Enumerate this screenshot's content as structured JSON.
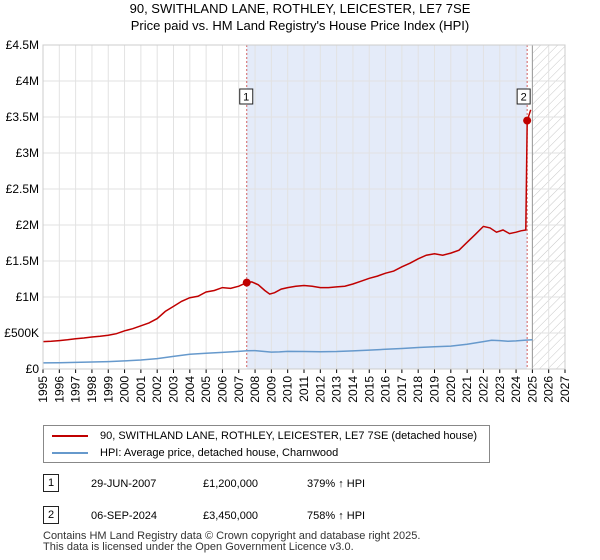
{
  "chart_data": {
    "type": "line",
    "title": "90, SWITHLAND LANE, ROTHLEY, LEICESTER, LE7 7SE",
    "subtitle": "Price paid vs. HM Land Registry's House Price Index (HPI)",
    "xlabel": "",
    "ylabel": "",
    "xlim": [
      1995,
      2027
    ],
    "ylim": [
      0,
      4500000
    ],
    "y_ticks": [
      {
        "value": 0,
        "label": "£0"
      },
      {
        "value": 500000,
        "label": "£500K"
      },
      {
        "value": 1000000,
        "label": "£1M"
      },
      {
        "value": 1500000,
        "label": "£1.5M"
      },
      {
        "value": 2000000,
        "label": "£2M"
      },
      {
        "value": 2500000,
        "label": "£2.5M"
      },
      {
        "value": 3000000,
        "label": "£3M"
      },
      {
        "value": 3500000,
        "label": "£3.5M"
      },
      {
        "value": 4000000,
        "label": "£4M"
      },
      {
        "value": 4500000,
        "label": "£4.5M"
      }
    ],
    "x_ticks": [
      "1995",
      "1996",
      "1997",
      "1998",
      "1999",
      "2000",
      "2001",
      "2002",
      "2003",
      "2004",
      "2005",
      "2006",
      "2007",
      "2008",
      "2009",
      "2010",
      "2011",
      "2012",
      "2013",
      "2014",
      "2015",
      "2016",
      "2017",
      "2018",
      "2019",
      "2020",
      "2021",
      "2022",
      "2023",
      "2024",
      "2025",
      "2026",
      "2027"
    ],
    "grid": true,
    "shaded_span": [
      2007.49,
      2024.68
    ],
    "future_hatch_from": 2025.0,
    "series": [
      {
        "name": "90, SWITHLAND LANE, ROTHLEY, LEICESTER, LE7 7SE (detached house)",
        "color": "#c00000",
        "x": [
          1995.0,
          1995.5,
          1996.0,
          1996.5,
          1997.0,
          1997.5,
          1998.0,
          1998.5,
          1999.0,
          1999.5,
          2000.0,
          2000.5,
          2001.0,
          2001.5,
          2002.0,
          2002.5,
          2003.0,
          2003.5,
          2004.0,
          2004.5,
          2005.0,
          2005.5,
          2006.0,
          2006.5,
          2007.0,
          2007.49,
          2007.8,
          2008.2,
          2008.6,
          2008.9,
          2009.2,
          2009.6,
          2010.0,
          2010.5,
          2011.0,
          2011.5,
          2012.0,
          2012.5,
          2013.0,
          2013.5,
          2014.0,
          2014.5,
          2015.0,
          2015.5,
          2016.0,
          2016.5,
          2017.0,
          2017.5,
          2018.0,
          2018.5,
          2019.0,
          2019.5,
          2020.0,
          2020.5,
          2021.0,
          2021.5,
          2022.0,
          2022.4,
          2022.8,
          2023.2,
          2023.6,
          2024.0,
          2024.3,
          2024.6,
          2024.68,
          2024.9
        ],
        "values": [
          380000,
          385000,
          395000,
          405000,
          420000,
          430000,
          445000,
          455000,
          470000,
          490000,
          530000,
          560000,
          600000,
          640000,
          700000,
          800000,
          870000,
          940000,
          990000,
          1010000,
          1070000,
          1090000,
          1130000,
          1120000,
          1150000,
          1200000,
          1210000,
          1170000,
          1090000,
          1040000,
          1060000,
          1110000,
          1130000,
          1150000,
          1160000,
          1150000,
          1130000,
          1130000,
          1140000,
          1150000,
          1180000,
          1220000,
          1260000,
          1290000,
          1330000,
          1360000,
          1420000,
          1470000,
          1530000,
          1580000,
          1600000,
          1580000,
          1610000,
          1650000,
          1760000,
          1870000,
          1980000,
          1960000,
          1900000,
          1930000,
          1880000,
          1900000,
          1920000,
          1930000,
          3450000,
          3600000
        ]
      },
      {
        "name": "HPI: Average price, detached house, Charnwood",
        "color": "#6699cc",
        "x": [
          1995.0,
          1996.0,
          1997.0,
          1998.0,
          1999.0,
          2000.0,
          2001.0,
          2002.0,
          2003.0,
          2004.0,
          2005.0,
          2006.0,
          2007.0,
          2007.5,
          2008.0,
          2008.5,
          2009.0,
          2009.5,
          2010.0,
          2011.0,
          2012.0,
          2013.0,
          2014.0,
          2015.0,
          2016.0,
          2017.0,
          2018.0,
          2019.0,
          2020.0,
          2021.0,
          2022.0,
          2022.5,
          2023.0,
          2023.5,
          2024.0,
          2024.5,
          2025.0
        ],
        "values": [
          85000,
          87000,
          92000,
          97000,
          103000,
          112000,
          125000,
          145000,
          175000,
          205000,
          220000,
          230000,
          245000,
          253000,
          255000,
          245000,
          235000,
          237000,
          245000,
          243000,
          240000,
          243000,
          252000,
          263000,
          273000,
          285000,
          298000,
          310000,
          318000,
          345000,
          380000,
          400000,
          395000,
          385000,
          390000,
          400000,
          405000
        ]
      }
    ],
    "annotations": [
      {
        "id": "1",
        "x": 2007.49,
        "y": 1200000
      },
      {
        "id": "2",
        "x": 2024.68,
        "y": 3450000
      }
    ]
  },
  "legend": {
    "entries": [
      {
        "label": "90, SWITHLAND LANE, ROTHLEY, LEICESTER, LE7 7SE (detached house)",
        "color": "#c00000"
      },
      {
        "label": "HPI: Average price, detached house, Charnwood",
        "color": "#6699cc"
      }
    ]
  },
  "transactions": [
    {
      "badge": "1",
      "date": "29-JUN-2007",
      "price": "£1,200,000",
      "hpi": "379% ↑ HPI"
    },
    {
      "badge": "2",
      "date": "06-SEP-2024",
      "price": "£3,450,000",
      "hpi": "758% ↑ HPI"
    }
  ],
  "footer": {
    "line1": "Contains HM Land Registry data © Crown copyright and database right 2025.",
    "line2": "This data is licensed under the Open Government Licence v3.0."
  }
}
